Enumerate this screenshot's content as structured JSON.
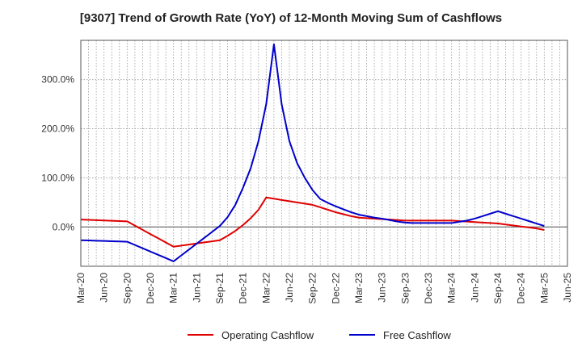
{
  "chart_data": {
    "type": "line",
    "title": "[9307]  Trend of Growth Rate (YoY) of 12-Month Moving Sum of Cashflows",
    "xlabel": "",
    "ylabel": "",
    "x": [
      "Mar-20",
      "Apr-20",
      "May-20",
      "Jun-20",
      "Jul-20",
      "Aug-20",
      "Sep-20",
      "Oct-20",
      "Nov-20",
      "Dec-20",
      "Jan-21",
      "Feb-21",
      "Mar-21",
      "Apr-21",
      "May-21",
      "Jun-21",
      "Jul-21",
      "Aug-21",
      "Sep-21",
      "Oct-21",
      "Nov-21",
      "Dec-21",
      "Jan-22",
      "Feb-22",
      "Mar-22",
      "Apr-22",
      "May-22",
      "Jun-22",
      "Jul-22",
      "Aug-22",
      "Sep-22",
      "Oct-22",
      "Nov-22",
      "Dec-22",
      "Jan-23",
      "Feb-23",
      "Mar-23",
      "Apr-23",
      "May-23",
      "Jun-23",
      "Jul-23",
      "Aug-23",
      "Sep-23",
      "Oct-23",
      "Nov-23",
      "Dec-23",
      "Jan-24",
      "Feb-24",
      "Mar-24",
      "Apr-24",
      "May-24",
      "Jun-24",
      "Jul-24",
      "Aug-24",
      "Sep-24",
      "Oct-24",
      "Nov-24",
      "Dec-24",
      "Jan-25",
      "Feb-25",
      "Mar-25"
    ],
    "x_tick_labels": [
      "Mar-20",
      "Jun-20",
      "Sep-20",
      "Dec-20",
      "Mar-21",
      "Jun-21",
      "Sep-21",
      "Dec-21",
      "Mar-22",
      "Jun-22",
      "Sep-22",
      "Dec-22",
      "Mar-23",
      "Jun-23",
      "Sep-23",
      "Dec-23",
      "Mar-24",
      "Jun-24",
      "Sep-24",
      "Dec-24",
      "Mar-25",
      "Jun-25"
    ],
    "y_tick_labels": [
      "0.0%",
      "100.0%",
      "200.0%",
      "300.0%"
    ],
    "y_ticks": [
      0,
      100,
      200,
      300
    ],
    "ylim": [
      -80,
      380
    ],
    "x_range_months": 63,
    "grid": true,
    "legend_position": "bottom-center",
    "series": [
      {
        "name": "Operating Cashflow",
        "color": "#e00000",
        "values": [
          15,
          14.4,
          13.8,
          13.2,
          12.6,
          12,
          11.4,
          2.8,
          -5.8,
          -14.4,
          -23,
          -31.6,
          -40.2,
          -38,
          -35.8,
          -33.6,
          -31.4,
          -29.2,
          -27,
          -18,
          -8,
          4,
          18,
          35,
          60,
          57.5,
          55,
          52.5,
          50,
          47.5,
          45,
          40,
          35,
          30,
          26,
          22,
          19,
          18,
          17,
          16,
          15,
          14,
          13,
          13,
          13,
          13,
          13,
          13,
          13,
          12,
          11,
          10,
          9,
          8,
          7,
          5,
          3,
          1,
          -1,
          -3,
          -6
        ]
      },
      {
        "name": "Free Cashflow",
        "color": "#0000cc",
        "values": [
          -27,
          -27.5,
          -28,
          -28.5,
          -29,
          -29.5,
          -30,
          -36.7,
          -43.3,
          -50,
          -56.7,
          -63.3,
          -70,
          -58,
          -46,
          -34,
          -22,
          -10,
          2,
          20,
          45,
          80,
          120,
          175,
          250,
          372,
          250,
          175,
          130,
          100,
          75,
          57,
          49,
          42,
          36,
          30,
          25,
          22,
          19,
          17,
          14,
          11,
          9,
          8,
          8,
          8,
          8,
          8,
          8,
          10.5,
          13,
          17,
          22,
          27,
          32,
          27,
          22,
          17,
          12,
          7,
          2
        ]
      }
    ]
  }
}
